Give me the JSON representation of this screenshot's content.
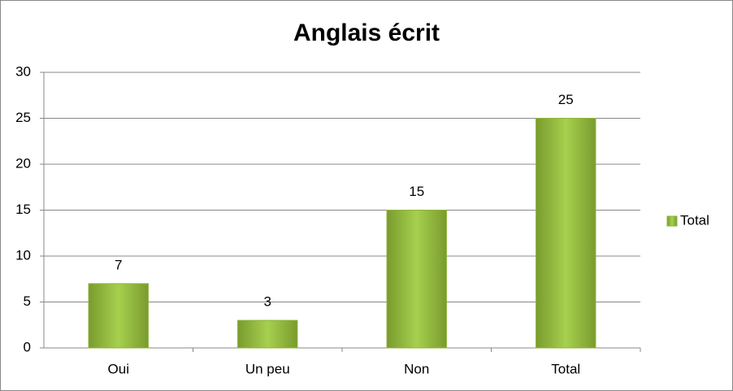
{
  "chart_data": {
    "type": "bar",
    "title": "Anglais écrit",
    "categories": [
      "Oui",
      "Un peu",
      "Non",
      "Total"
    ],
    "series": [
      {
        "name": "Total",
        "color": "#8db33a",
        "values": [
          7,
          3,
          15,
          25
        ]
      }
    ],
    "ylim": [
      0,
      30
    ],
    "yticks": [
      0,
      5,
      10,
      15,
      20,
      25,
      30
    ],
    "grid": true,
    "legend": "right"
  }
}
